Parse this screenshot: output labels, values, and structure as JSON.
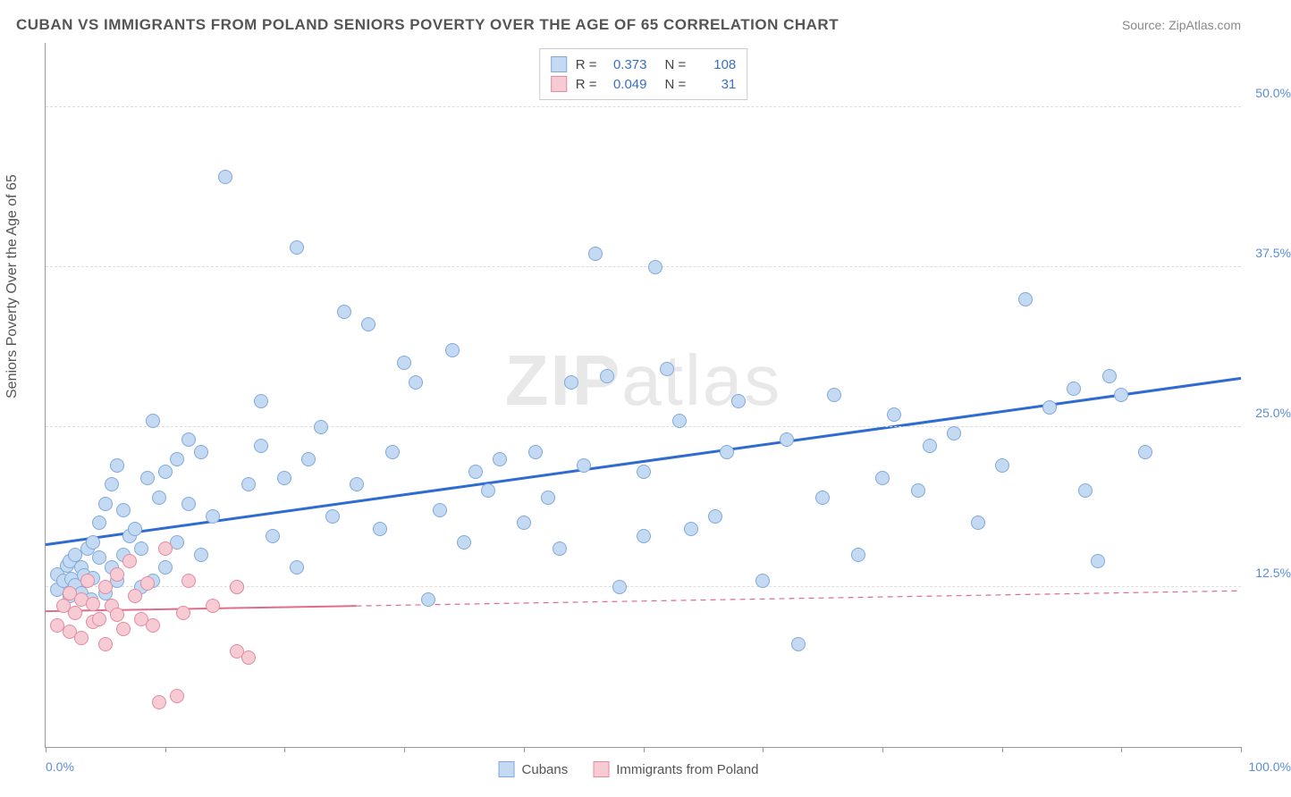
{
  "title": "CUBAN VS IMMIGRANTS FROM POLAND SENIORS POVERTY OVER THE AGE OF 65 CORRELATION CHART",
  "source": "Source: ZipAtlas.com",
  "ylabel": "Seniors Poverty Over the Age of 65",
  "watermark_a": "ZIP",
  "watermark_b": "atlas",
  "chart": {
    "type": "scatter",
    "xlim": [
      0,
      100
    ],
    "ylim": [
      0,
      55
    ],
    "x0_label": "0.0%",
    "x100_label": "100.0%",
    "ytick_labels": [
      "12.5%",
      "25.0%",
      "37.5%",
      "50.0%"
    ],
    "ytick_values": [
      12.5,
      25.0,
      37.5,
      50.0
    ],
    "xtick_values": [
      0,
      10,
      20,
      30,
      40,
      50,
      60,
      70,
      80,
      90,
      100
    ],
    "grid_color": "#dddddd",
    "axis_color": "#999999",
    "background_color": "#ffffff",
    "marker_radius": 8,
    "marker_stroke_width": 1.5,
    "series": [
      {
        "name": "Cubans",
        "fill": "#c4daf2",
        "stroke": "#7fa9dc",
        "R": "0.373",
        "N": "108",
        "trend": {
          "x1": 0,
          "y1": 15.8,
          "x2": 100,
          "y2": 28.8,
          "solid_until_x": 100,
          "color": "#2f6bd0",
          "width": 3
        },
        "points": [
          [
            1,
            12.3
          ],
          [
            1,
            13.5
          ],
          [
            1.5,
            13.0
          ],
          [
            1.8,
            14.2
          ],
          [
            2,
            11.8
          ],
          [
            2,
            14.5
          ],
          [
            2.2,
            13.1
          ],
          [
            2.5,
            12.6
          ],
          [
            2.5,
            15.0
          ],
          [
            3,
            12.0
          ],
          [
            3,
            14.0
          ],
          [
            3.2,
            13.4
          ],
          [
            3.5,
            15.5
          ],
          [
            3.8,
            11.5
          ],
          [
            4,
            13.2
          ],
          [
            4,
            16.0
          ],
          [
            4.5,
            14.8
          ],
          [
            4.5,
            17.5
          ],
          [
            5,
            12.0
          ],
          [
            5,
            19.0
          ],
          [
            5.5,
            14.0
          ],
          [
            5.5,
            20.5
          ],
          [
            6,
            13.0
          ],
          [
            6,
            22.0
          ],
          [
            6.5,
            15.0
          ],
          [
            6.5,
            18.5
          ],
          [
            7,
            16.5
          ],
          [
            7.5,
            17.0
          ],
          [
            8,
            12.5
          ],
          [
            8,
            15.5
          ],
          [
            8.5,
            21.0
          ],
          [
            9,
            13.0
          ],
          [
            9,
            25.5
          ],
          [
            9.5,
            19.5
          ],
          [
            10,
            14.0
          ],
          [
            10,
            21.5
          ],
          [
            11,
            16.0
          ],
          [
            11,
            22.5
          ],
          [
            12,
            19.0
          ],
          [
            12,
            24.0
          ],
          [
            13,
            15.0
          ],
          [
            13,
            23.0
          ],
          [
            14,
            18.0
          ],
          [
            15,
            44.5
          ],
          [
            16,
            12.5
          ],
          [
            17,
            20.5
          ],
          [
            18,
            23.5
          ],
          [
            18,
            27.0
          ],
          [
            19,
            16.5
          ],
          [
            20,
            21.0
          ],
          [
            21,
            14.0
          ],
          [
            21,
            39.0
          ],
          [
            22,
            22.5
          ],
          [
            23,
            25.0
          ],
          [
            24,
            18.0
          ],
          [
            25,
            34.0
          ],
          [
            26,
            20.5
          ],
          [
            27,
            33.0
          ],
          [
            28,
            17.0
          ],
          [
            29,
            23.0
          ],
          [
            30,
            30.0
          ],
          [
            31,
            28.5
          ],
          [
            32,
            11.5
          ],
          [
            33,
            18.5
          ],
          [
            34,
            31.0
          ],
          [
            35,
            16.0
          ],
          [
            36,
            21.5
          ],
          [
            37,
            20.0
          ],
          [
            38,
            22.5
          ],
          [
            40,
            17.5
          ],
          [
            41,
            23.0
          ],
          [
            42,
            19.5
          ],
          [
            43,
            15.5
          ],
          [
            44,
            28.5
          ],
          [
            45,
            22.0
          ],
          [
            46,
            38.5
          ],
          [
            47,
            29.0
          ],
          [
            48,
            12.5
          ],
          [
            50,
            21.5
          ],
          [
            50,
            16.5
          ],
          [
            51,
            37.5
          ],
          [
            52,
            29.5
          ],
          [
            53,
            25.5
          ],
          [
            54,
            17.0
          ],
          [
            56,
            18.0
          ],
          [
            57,
            23.0
          ],
          [
            58,
            27.0
          ],
          [
            60,
            13.0
          ],
          [
            62,
            24.0
          ],
          [
            63,
            8.0
          ],
          [
            65,
            19.5
          ],
          [
            66,
            27.5
          ],
          [
            68,
            15.0
          ],
          [
            70,
            21.0
          ],
          [
            71,
            26.0
          ],
          [
            73,
            20.0
          ],
          [
            74,
            23.5
          ],
          [
            76,
            24.5
          ],
          [
            78,
            17.5
          ],
          [
            80,
            22.0
          ],
          [
            82,
            35.0
          ],
          [
            84,
            26.5
          ],
          [
            86,
            28.0
          ],
          [
            87,
            20.0
          ],
          [
            88,
            14.5
          ],
          [
            89,
            29.0
          ],
          [
            90,
            27.5
          ],
          [
            92,
            23.0
          ]
        ]
      },
      {
        "name": "Immigrants from Poland",
        "fill": "#f6cbd4",
        "stroke": "#e48aa0",
        "R": "0.049",
        "N": "31",
        "trend": {
          "x1": 0,
          "y1": 10.6,
          "x2": 100,
          "y2": 12.2,
          "solid_until_x": 26,
          "color": "#e06c8a",
          "width": 2
        },
        "points": [
          [
            1,
            9.5
          ],
          [
            1.5,
            11.0
          ],
          [
            2,
            9.0
          ],
          [
            2,
            12.0
          ],
          [
            2.5,
            10.5
          ],
          [
            3,
            8.5
          ],
          [
            3,
            11.5
          ],
          [
            3.5,
            13.0
          ],
          [
            4,
            9.8
          ],
          [
            4,
            11.2
          ],
          [
            4.5,
            10.0
          ],
          [
            5,
            12.5
          ],
          [
            5,
            8.0
          ],
          [
            5.5,
            11.0
          ],
          [
            6,
            10.3
          ],
          [
            6,
            13.5
          ],
          [
            6.5,
            9.2
          ],
          [
            7,
            14.5
          ],
          [
            7.5,
            11.8
          ],
          [
            8,
            10.0
          ],
          [
            8.5,
            12.8
          ],
          [
            9,
            9.5
          ],
          [
            9.5,
            3.5
          ],
          [
            10,
            15.5
          ],
          [
            11,
            4.0
          ],
          [
            11.5,
            10.5
          ],
          [
            12,
            13.0
          ],
          [
            14,
            11.0
          ],
          [
            16,
            7.5
          ],
          [
            16,
            12.5
          ],
          [
            17,
            7.0
          ]
        ]
      }
    ]
  },
  "legend_bottom": [
    {
      "label": "Cubans",
      "fill": "#c4daf2",
      "stroke": "#7fa9dc"
    },
    {
      "label": "Immigrants from Poland",
      "fill": "#f6cbd4",
      "stroke": "#e48aa0"
    }
  ]
}
